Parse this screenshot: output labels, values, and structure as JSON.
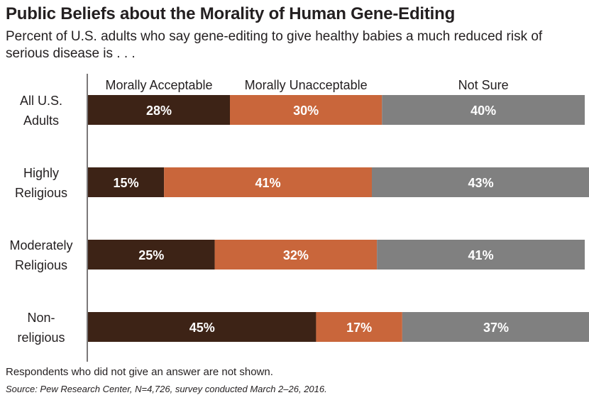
{
  "header": {
    "title": "Public Beliefs about the Morality of Human Gene-Editing",
    "subtitle": "Percent of U.S. adults who say gene-editing to give healthy babies a much reduced risk of serious disease is . . ."
  },
  "footer": {
    "note": "Respondents who did not give an answer are not shown.",
    "source": "Source: Pew Research Center, N=4,726, survey conducted March 2–26, 2016."
  },
  "chart_data": {
    "type": "bar",
    "orientation": "horizontal",
    "stacked": true,
    "title": "Public Beliefs about the Morality of Human Gene-Editing",
    "categories": [
      [
        "All U.S.",
        "Adults"
      ],
      [
        "Highly",
        "Religious"
      ],
      [
        "Moderately",
        "Religious"
      ],
      [
        "Non-",
        "religious"
      ]
    ],
    "series": [
      {
        "name": "Morally Acceptable",
        "color": "#3d2316",
        "values": [
          28,
          15,
          25,
          45
        ]
      },
      {
        "name": "Morally Unacceptable",
        "color": "#c9663b",
        "values": [
          30,
          41,
          32,
          17
        ]
      },
      {
        "name": "Not Sure",
        "color": "#808080",
        "values": [
          40,
          43,
          41,
          37
        ]
      }
    ],
    "value_suffix": "%",
    "xlim": [
      0,
      98
    ],
    "grid": false,
    "legend_placement": "top"
  }
}
